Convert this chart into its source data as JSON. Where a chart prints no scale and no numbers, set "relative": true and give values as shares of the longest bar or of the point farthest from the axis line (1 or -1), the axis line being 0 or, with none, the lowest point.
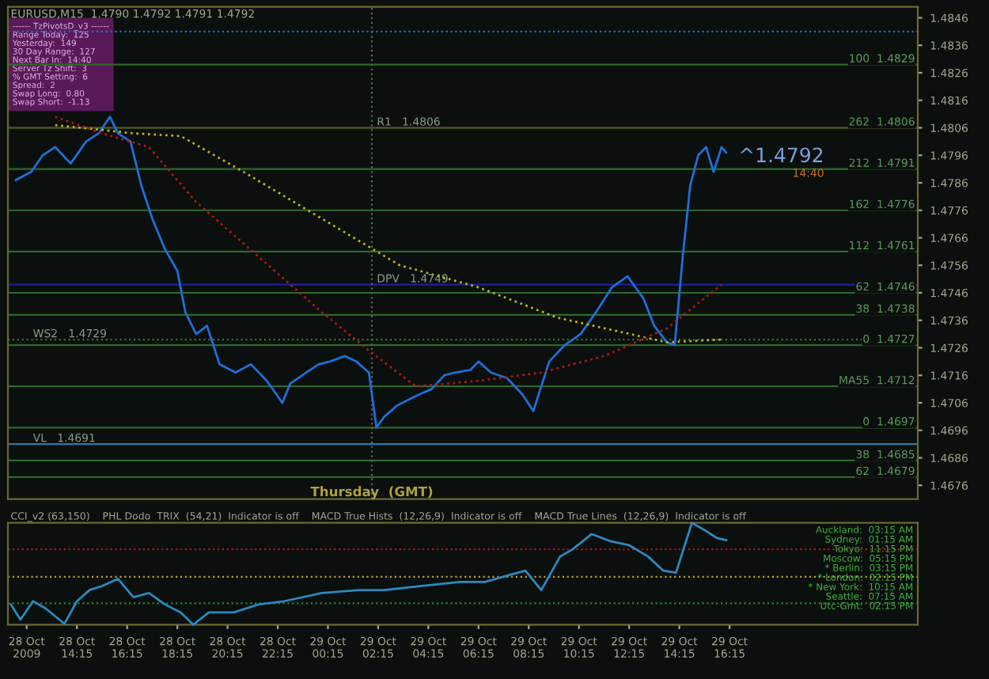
{
  "chart_data": [
    {
      "type": "line",
      "title": "EURUSD,M15  1.4790 1.4792 1.4791 1.4792",
      "tick_labels": "y",
      "grid": false,
      "legend": false,
      "line_style": "solid",
      "marker": "none",
      "xlim": [
        "2009-10-28T11:30",
        "2009-10-29T23:45"
      ],
      "ylim": [
        1.4671,
        1.485
      ],
      "yticks": [
        1.4846,
        1.4836,
        1.4826,
        1.4816,
        1.4806,
        1.4796,
        1.4786,
        1.4776,
        1.4766,
        1.4756,
        1.4746,
        1.4736,
        1.4726,
        1.4716,
        1.4706,
        1.4696,
        1.4686,
        1.4676
      ],
      "series": [
        {
          "color": "#1e6fd9",
          "x": [
            "2009-10-28T11:49",
            "2009-10-28T12:26",
            "2009-10-28T12:53",
            "2009-10-28T13:23",
            "2009-10-28T14:00",
            "2009-10-28T14:37",
            "2009-10-28T15:07",
            "2009-10-28T15:34",
            "2009-10-28T15:53",
            "2009-10-28T16:23",
            "2009-10-28T16:49",
            "2009-10-28T17:15",
            "2009-10-28T17:45",
            "2009-10-28T18:15",
            "2009-10-28T18:34",
            "2009-10-28T19:00",
            "2009-10-28T19:26",
            "2009-10-28T19:56",
            "2009-10-28T20:34",
            "2009-10-28T21:11",
            "2009-10-28T21:49",
            "2009-10-28T22:26",
            "2009-10-28T22:45",
            "2009-10-28T23:23",
            "2009-10-28T23:53",
            "2009-10-29T00:19",
            "2009-10-29T00:56",
            "2009-10-29T01:23",
            "2009-10-29T01:53",
            "2009-10-29T02:11",
            "2009-10-29T02:30",
            "2009-10-29T03:00",
            "2009-10-29T03:26",
            "2009-10-29T03:53",
            "2009-10-29T04:23",
            "2009-10-29T04:53",
            "2009-10-29T05:19",
            "2009-10-29T05:56",
            "2009-10-29T06:15",
            "2009-10-29T06:45",
            "2009-10-29T07:23",
            "2009-10-29T08:00",
            "2009-10-29T08:26",
            "2009-10-29T09:04",
            "2009-10-29T09:41",
            "2009-10-29T10:19",
            "2009-10-29T10:56",
            "2009-10-29T11:34",
            "2009-10-29T12:11",
            "2009-10-29T12:30",
            "2009-10-29T12:49",
            "2009-10-29T13:15",
            "2009-10-29T13:45",
            "2009-10-29T14:04",
            "2009-10-29T14:23",
            "2009-10-29T14:41",
            "2009-10-29T15:00",
            "2009-10-29T15:19",
            "2009-10-29T15:37",
            "2009-10-29T15:56",
            "2009-10-29T16:07"
          ],
          "values": [
            1.4787,
            1.479,
            1.4796,
            1.4799,
            1.4793,
            1.4801,
            1.4804,
            1.481,
            1.4804,
            1.4801,
            1.4785,
            1.4773,
            1.4762,
            1.4754,
            1.4739,
            1.4731,
            1.4734,
            1.472,
            1.4717,
            1.472,
            1.4714,
            1.4706,
            1.4713,
            1.4717,
            1.472,
            1.4721,
            1.4723,
            1.4721,
            1.4717,
            1.4697,
            1.4701,
            1.4705,
            1.4707,
            1.4709,
            1.4711,
            1.4716,
            1.4717,
            1.4718,
            1.4721,
            1.4717,
            1.4715,
            1.4709,
            1.4703,
            1.4721,
            1.4727,
            1.4731,
            1.4739,
            1.4748,
            1.4752,
            1.4748,
            1.4744,
            1.4734,
            1.4728,
            1.4727,
            1.4759,
            1.4785,
            1.4796,
            1.4799,
            1.479,
            1.4799,
            1.4797
          ]
        },
        {
          "color": "#b8b020",
          "line_style": "dotted",
          "x": [
            "2009-10-28T13:23",
            "2009-10-28T16:30",
            "2009-10-28T18:23",
            "2009-10-28T20:53",
            "2009-10-29T00:00",
            "2009-10-29T03:07",
            "2009-10-29T06:15",
            "2009-10-29T09:23",
            "2009-10-29T13:45",
            "2009-10-29T15:56"
          ],
          "values": [
            1.4807,
            1.4804,
            1.4803,
            1.479,
            1.4773,
            1.4756,
            1.4748,
            1.4737,
            1.4728,
            1.4729
          ]
        },
        {
          "color": "#b01818",
          "line_style": "dotted",
          "x": [
            "2009-10-28T13:23",
            "2009-10-28T15:15",
            "2009-10-28T17:07",
            "2009-10-28T19:00",
            "2009-10-28T21:30",
            "2009-10-29T00:00",
            "2009-10-29T01:53",
            "2009-10-29T03:45",
            "2009-10-29T06:15",
            "2009-10-29T08:45",
            "2009-10-29T11:15",
            "2009-10-29T13:45",
            "2009-10-29T15:56"
          ],
          "values": [
            1.481,
            1.4804,
            1.4799,
            1.4779,
            1.4759,
            1.4739,
            1.4725,
            1.4712,
            1.4714,
            1.4717,
            1.4723,
            1.4733,
            1.4749
          ]
        }
      ],
      "ref_lines": [
        {
          "axis": "y",
          "value": 1.4841,
          "color": "#1e6fd9",
          "line_style": "dotted"
        },
        {
          "axis": "y",
          "value": 1.4806,
          "color": "#b01818",
          "line_style": "solid"
        },
        {
          "axis": "y",
          "value": 1.4749,
          "color": "#2020a0",
          "line_style": "solid"
        },
        {
          "axis": "y",
          "value": 1.4729,
          "color": "#2a7a2a",
          "line_style": "dotted"
        },
        {
          "axis": "y",
          "value": 1.4691,
          "color": "#2a7ab0",
          "line_style": "solid"
        },
        {
          "axis": "y",
          "value": 1.4829,
          "label": "100  1.4829",
          "color": "#2a6a2a",
          "line_style": "solid"
        },
        {
          "axis": "y",
          "value": 1.4806,
          "label": "262  1.4806",
          "color": "#2a6a2a",
          "line_style": "solid"
        },
        {
          "axis": "y",
          "value": 1.4791,
          "label": "212  1.4791",
          "color": "#2a6a2a",
          "line_style": "solid"
        },
        {
          "axis": "y",
          "value": 1.4776,
          "label": "162  1.4776",
          "color": "#2a6a2a",
          "line_style": "solid"
        },
        {
          "axis": "y",
          "value": 1.4761,
          "label": "112  1.4761",
          "color": "#2a6a2a",
          "line_style": "solid"
        },
        {
          "axis": "y",
          "value": 1.4746,
          "label": "62  1.4746",
          "color": "#2a6a2a",
          "line_style": "solid"
        },
        {
          "axis": "y",
          "value": 1.4738,
          "label": "38  1.4738",
          "color": "#2a6a2a",
          "line_style": "solid"
        },
        {
          "axis": "y",
          "value": 1.4727,
          "label": "0  1.4727",
          "color": "#2a6a2a",
          "line_style": "solid"
        },
        {
          "axis": "y",
          "value": 1.4712,
          "label": "MA55  1.4712",
          "color": "#2a6a2a",
          "line_style": "solid"
        },
        {
          "axis": "y",
          "value": 1.4697,
          "label": "0  1.4697",
          "color": "#2a6a2a",
          "line_style": "solid"
        },
        {
          "axis": "y",
          "value": 1.4685,
          "label": "38  1.4685",
          "color": "#2a6a2a",
          "line_style": "solid"
        },
        {
          "axis": "y",
          "value": 1.4679,
          "label": "62  1.4679",
          "color": "#2a6a2a",
          "line_style": "solid"
        },
        {
          "axis": "x",
          "value": "2009-10-29T02:00",
          "label": "Thursday  (GMT)",
          "color": "#5a6a5a",
          "line_style": "dotted"
        }
      ],
      "annotations": [
        "------ TzPivotsD_v3 ------",
        "Range Today:  125",
        "Yesterday:  149",
        "30 Day Range:  127",
        "Next Bar In:  14:40",
        "Server Tz Shift:  3",
        "% GMT Setting:  6",
        "Spread:  2",
        "Swap Long:  0.80",
        "Swap Short:  -1.13",
        "14:40",
        {
          "text": "R1   1.4806",
          "x": "2009-10-29T02:12",
          "y": 1.4806
        },
        {
          "text": "DPV   1.4749",
          "x": "2009-10-29T02:12",
          "y": 1.4749
        },
        {
          "text": "WS2   1.4729",
          "x": "2009-10-28T12:30",
          "y": 1.4729
        },
        {
          "text": "VL   1.4691",
          "x": "2009-10-28T12:30",
          "y": 1.4691
        },
        {
          "text": "^1.4792",
          "x": "2009-10-29T16:36",
          "y": 1.4792
        }
      ]
    },
    {
      "type": "line",
      "relative": true,
      "tick_labels": "x",
      "grid": false,
      "legend": false,
      "line_style": "solid",
      "marker": "none",
      "title": "CCI_v2 (63,150)    PHL Dodo  TRIX  (54,21)  Indicator is off    MACD True Hists  (12,26,9)  Indicator is off    MACD True Lines  (12,26,9)  Indicator is off",
      "xlim": [
        "2009-10-28T11:30",
        "2009-10-29T23:45"
      ],
      "xticks": [
        {
          "value": "2009-10-28T12:15",
          "label": "28 Oct 2009"
        },
        {
          "value": "2009-10-28T14:15",
          "label": "28 Oct 14:15"
        },
        {
          "value": "2009-10-28T16:15",
          "label": "28 Oct 16:15"
        },
        {
          "value": "2009-10-28T18:15",
          "label": "28 Oct 18:15"
        },
        {
          "value": "2009-10-28T20:15",
          "label": "28 Oct 20:15"
        },
        {
          "value": "2009-10-28T22:15",
          "label": "28 Oct 22:15"
        },
        {
          "value": "2009-10-29T00:15",
          "label": "29 Oct 00:15"
        },
        {
          "value": "2009-10-29T02:15",
          "label": "29 Oct 02:15"
        },
        {
          "value": "2009-10-29T04:15",
          "label": "29 Oct 04:15"
        },
        {
          "value": "2009-10-29T06:15",
          "label": "29 Oct 06:15"
        },
        {
          "value": "2009-10-29T08:15",
          "label": "29 Oct 08:15"
        },
        {
          "value": "2009-10-29T10:15",
          "label": "29 Oct 10:15"
        },
        {
          "value": "2009-10-29T12:15",
          "label": "29 Oct 12:15"
        },
        {
          "value": "2009-10-29T14:15",
          "label": "29 Oct 14:15"
        },
        {
          "value": "2009-10-29T16:15",
          "label": "29 Oct 16:15"
        }
      ],
      "series": [
        {
          "color": "#2a8ac0",
          "x": [
            "2009-10-28T11:37",
            "2009-10-28T12:00",
            "2009-10-28T12:30",
            "2009-10-28T13:00",
            "2009-10-28T13:45",
            "2009-10-28T14:15",
            "2009-10-28T14:45",
            "2009-10-28T15:15",
            "2009-10-28T15:53",
            "2009-10-28T16:30",
            "2009-10-28T17:07",
            "2009-10-28T17:45",
            "2009-10-28T18:23",
            "2009-10-28T18:53",
            "2009-10-28T19:30",
            "2009-10-28T20:30",
            "2009-10-28T21:30",
            "2009-10-28T22:30",
            "2009-10-29T00:00",
            "2009-10-29T01:30",
            "2009-10-29T02:30",
            "2009-10-29T04:00",
            "2009-10-29T05:30",
            "2009-10-29T06:30",
            "2009-10-29T07:30",
            "2009-10-29T08:07",
            "2009-10-29T08:45",
            "2009-10-29T09:30",
            "2009-10-29T10:00",
            "2009-10-29T10:45",
            "2009-10-29T11:30",
            "2009-10-29T12:15",
            "2009-10-29T13:00",
            "2009-10-29T13:37",
            "2009-10-29T14:07",
            "2009-10-29T14:45",
            "2009-10-29T15:15",
            "2009-10-29T15:45",
            "2009-10-29T16:07"
          ],
          "values": [
            0.2,
            0.05,
            0.23,
            0.16,
            0.01,
            0.23,
            0.34,
            0.38,
            0.45,
            0.27,
            0.31,
            0.2,
            0.12,
            0,
            0.12,
            0.12,
            0.2,
            0.23,
            0.31,
            0.34,
            0.34,
            0.38,
            0.42,
            0.42,
            0.49,
            0.53,
            0.34,
            0.67,
            0.74,
            0.89,
            0.82,
            0.78,
            0.67,
            0.53,
            0.51,
            1,
            0.93,
            0.85,
            0.83
          ]
        }
      ],
      "ref_lines": [
        {
          "axis": "y",
          "value": 0.74,
          "color": "#b01818",
          "line_style": "dotted"
        },
        {
          "axis": "y",
          "value": 0.47,
          "color": "#b8a020",
          "line_style": "dotted"
        },
        {
          "axis": "y",
          "value": 0.21,
          "color": "#2a8a2a",
          "line_style": "dotted"
        }
      ],
      "annotations": [
        "Auckland:  03:15 AM",
        "Sydney:  01:15 AM",
        "Tokyo:  11:15 PM",
        "Moscow:  05:15 PM",
        "* Berlin:  03:15 PM",
        "* London:  02:15 PM",
        "* New York:  10:15 AM",
        "Seattle:  07:15 AM",
        "Utc-Gmt:  02:15 PM"
      ]
    }
  ]
}
